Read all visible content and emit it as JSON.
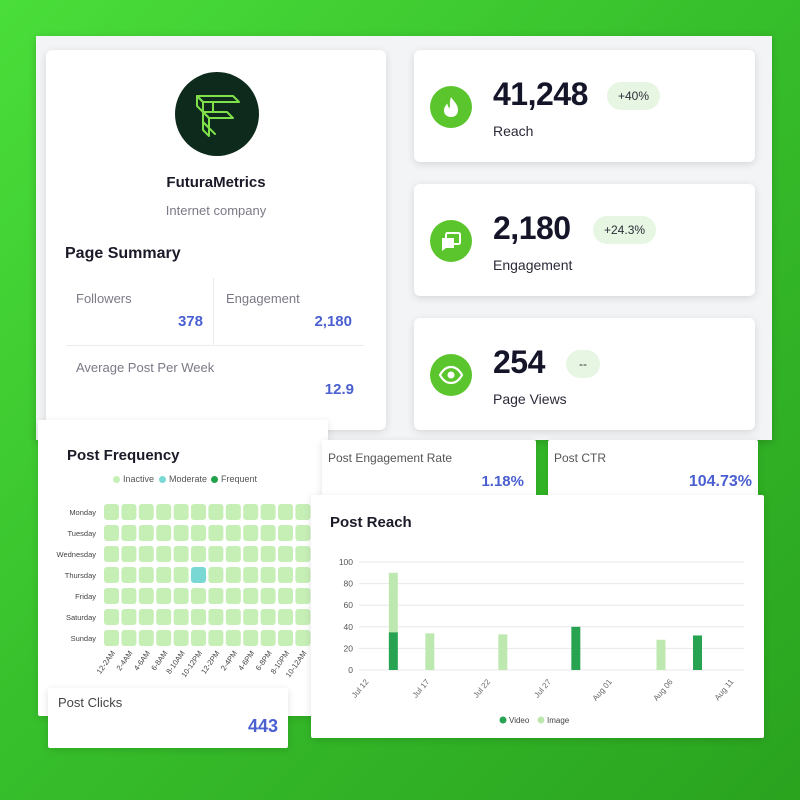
{
  "profile": {
    "company_name": "FuturaMetrics",
    "company_type": "Internet company",
    "summary_title": "Page Summary",
    "stats": {
      "followers_label": "Followers",
      "followers_value": "378",
      "engagement_label": "Engagement",
      "engagement_value": "2,180",
      "avg_label": "Average Post Per Week",
      "avg_value": "12.9"
    }
  },
  "kpis": [
    {
      "value": "41,248",
      "label": "Reach",
      "badge": "+40%",
      "icon": "flame-icon"
    },
    {
      "value": "2,180",
      "label": "Engagement",
      "badge": "+24.3%",
      "icon": "chat-bubbles-icon"
    },
    {
      "value": "254",
      "label": "Page Views",
      "badge": "--",
      "icon": "eye-icon"
    }
  ],
  "post_frequency": {
    "title": "Post Frequency",
    "legend": [
      "Inactive",
      "Moderate",
      "Frequent"
    ],
    "days": [
      "Monday",
      "Tuesday",
      "Wednesday",
      "Thursday",
      "Friday",
      "Saturday",
      "Sunday"
    ],
    "time_slots": [
      "12-2AM",
      "2-4AM",
      "4-6AM",
      "6-8AM",
      "8-10AM",
      "10-12PM",
      "12-2PM",
      "2-4PM",
      "4-6PM",
      "6-8PM",
      "8-10PM",
      "10-12AM"
    ],
    "moderate_cell": {
      "day": "Thursday",
      "slot": "10-12PM"
    }
  },
  "post_clicks": {
    "label": "Post Clicks",
    "value": "443"
  },
  "post_engagement_rate": {
    "label": "Post Engagement Rate",
    "value": "1.18%"
  },
  "post_ctr": {
    "label": "Post CTR",
    "value": "104.73%"
  },
  "colors": {
    "accent_green": "#5bc52d",
    "value_blue": "#4a5fd0",
    "heat_inactive": "#c6efb6",
    "heat_moderate": "#79d8d3",
    "heat_frequent": "#22a04a",
    "video": "#27a351",
    "image": "#bde9b0"
  },
  "chart_data": {
    "type": "bar",
    "title": "Post Reach",
    "x_tick_labels": [
      "Jul 12",
      "Jul 17",
      "Jul 22",
      "Jul 27",
      "Aug 01",
      "Aug 06",
      "Aug 11"
    ],
    "y_ticks": [
      0,
      20,
      40,
      60,
      80,
      100
    ],
    "ylim": [
      0,
      100
    ],
    "stacked": true,
    "grid": true,
    "legend_position": "bottom",
    "series": [
      {
        "name": "Video",
        "points": [
          {
            "x": "Jul 14",
            "y": 35
          },
          {
            "x": "Jul 29",
            "y": 40
          },
          {
            "x": "Aug 08",
            "y": 32
          }
        ]
      },
      {
        "name": "Image",
        "points": [
          {
            "x": "Jul 14",
            "y": 55
          },
          {
            "x": "Jul 17",
            "y": 34
          },
          {
            "x": "Jul 23",
            "y": 33
          },
          {
            "x": "Aug 05",
            "y": 28
          }
        ]
      }
    ]
  }
}
